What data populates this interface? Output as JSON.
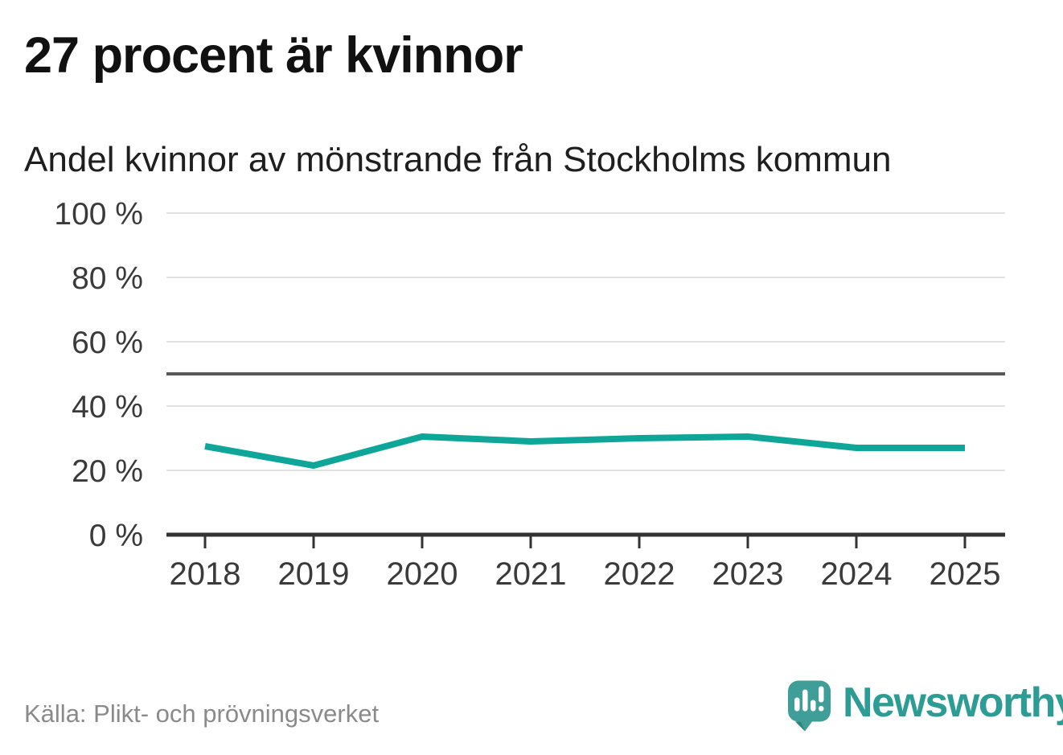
{
  "header": {
    "title": "27 procent är kvinnor",
    "subtitle": "Andel kvinnor av mönstrande från Stockholms kommun"
  },
  "chart_data": {
    "type": "line",
    "title": "Andel kvinnor av mönstrande från Stockholms kommun",
    "categories": [
      "2018",
      "2019",
      "2020",
      "2021",
      "2022",
      "2023",
      "2024",
      "2025"
    ],
    "series": [
      {
        "name": "Andel kvinnor av mönstrande",
        "values": [
          27.5,
          21.5,
          30.5,
          29,
          30,
          30.5,
          27,
          27
        ]
      }
    ],
    "ylim": [
      0,
      100
    ],
    "yticks": [
      0,
      20,
      40,
      60,
      80,
      100
    ],
    "ytick_labels": [
      "0 %",
      "20 %",
      "40 %",
      "60 %",
      "80 %",
      "100 %"
    ],
    "reference_line_y": 50,
    "grid": true,
    "legend": "none",
    "line_color": "#0fa69a"
  },
  "footer": {
    "source": "Källa: Plikt- och prövningsverket",
    "brand": "Newsworthy"
  },
  "colors": {
    "line": "#0fa69a",
    "grid": "#e2e2e2",
    "reference_line": "#585858",
    "axis": "#333333",
    "axis_text": "#3a3a3a",
    "title_text": "#111111",
    "subtitle_text": "#1f1f1f",
    "source_text": "#8a8a8a",
    "brand_teal": "#2d9c95",
    "logo_fill": "#3f9e97",
    "logo_shadow": "#2f837e",
    "logo_glyph": "#ffffff"
  }
}
